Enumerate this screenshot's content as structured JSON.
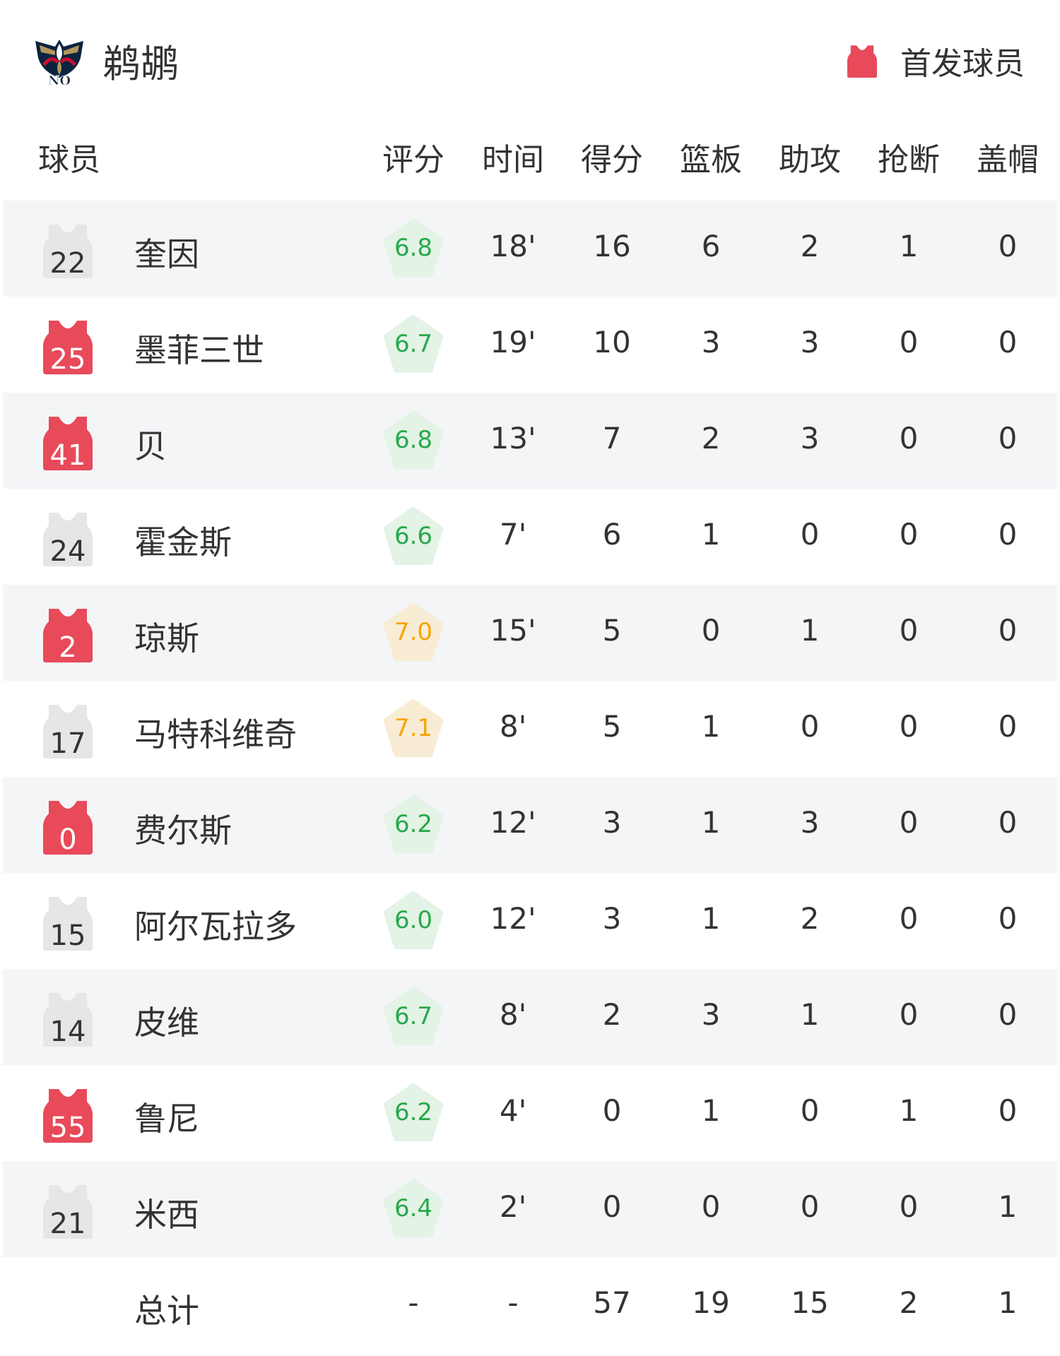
{
  "team": {
    "name": "鹈鹕",
    "logo_text": "NO"
  },
  "legend": {
    "label": "首发球员",
    "icon": "jersey-icon",
    "color": "#e84a5a"
  },
  "headers": {
    "player": "球员",
    "rating": "评分",
    "time": "时间",
    "points": "得分",
    "rebounds": "篮板",
    "assists": "助攻",
    "steals": "抢断",
    "blocks": "盖帽"
  },
  "colors": {
    "starter": "#e84a5a",
    "bench": "#e6e6e6",
    "rating_green": "#2aa84a",
    "rating_green_bg": "#e3f3e6",
    "rating_gold": "#f5a500",
    "rating_gold_bg": "#f8ecd4"
  },
  "players": [
    {
      "number": "22",
      "name": "奎因",
      "starter": false,
      "rating": "6.8",
      "tier": "green",
      "time": "18'",
      "points": "16",
      "rebounds": "6",
      "assists": "2",
      "steals": "1",
      "blocks": "0"
    },
    {
      "number": "25",
      "name": "墨菲三世",
      "starter": true,
      "rating": "6.7",
      "tier": "green",
      "time": "19'",
      "points": "10",
      "rebounds": "3",
      "assists": "3",
      "steals": "0",
      "blocks": "0"
    },
    {
      "number": "41",
      "name": "贝",
      "starter": true,
      "rating": "6.8",
      "tier": "green",
      "time": "13'",
      "points": "7",
      "rebounds": "2",
      "assists": "3",
      "steals": "0",
      "blocks": "0"
    },
    {
      "number": "24",
      "name": "霍金斯",
      "starter": false,
      "rating": "6.6",
      "tier": "green",
      "time": "7'",
      "points": "6",
      "rebounds": "1",
      "assists": "0",
      "steals": "0",
      "blocks": "0"
    },
    {
      "number": "2",
      "name": "琼斯",
      "starter": true,
      "rating": "7.0",
      "tier": "gold",
      "time": "15'",
      "points": "5",
      "rebounds": "0",
      "assists": "1",
      "steals": "0",
      "blocks": "0"
    },
    {
      "number": "17",
      "name": "马特科维奇",
      "starter": false,
      "rating": "7.1",
      "tier": "gold",
      "time": "8'",
      "points": "5",
      "rebounds": "1",
      "assists": "0",
      "steals": "0",
      "blocks": "0"
    },
    {
      "number": "0",
      "name": "费尔斯",
      "starter": true,
      "rating": "6.2",
      "tier": "green",
      "time": "12'",
      "points": "3",
      "rebounds": "1",
      "assists": "3",
      "steals": "0",
      "blocks": "0"
    },
    {
      "number": "15",
      "name": "阿尔瓦拉多",
      "starter": false,
      "rating": "6.0",
      "tier": "green",
      "time": "12'",
      "points": "3",
      "rebounds": "1",
      "assists": "2",
      "steals": "0",
      "blocks": "0"
    },
    {
      "number": "14",
      "name": "皮维",
      "starter": false,
      "rating": "6.7",
      "tier": "green",
      "time": "8'",
      "points": "2",
      "rebounds": "3",
      "assists": "1",
      "steals": "0",
      "blocks": "0"
    },
    {
      "number": "55",
      "name": "鲁尼",
      "starter": true,
      "rating": "6.2",
      "tier": "green",
      "time": "4'",
      "points": "0",
      "rebounds": "1",
      "assists": "0",
      "steals": "1",
      "blocks": "0"
    },
    {
      "number": "21",
      "name": "米西",
      "starter": false,
      "rating": "6.4",
      "tier": "green",
      "time": "2'",
      "points": "0",
      "rebounds": "0",
      "assists": "0",
      "steals": "0",
      "blocks": "1"
    }
  ],
  "totals": {
    "label": "总计",
    "rating": "-",
    "time": "-",
    "points": "57",
    "rebounds": "19",
    "assists": "15",
    "steals": "2",
    "blocks": "1"
  }
}
